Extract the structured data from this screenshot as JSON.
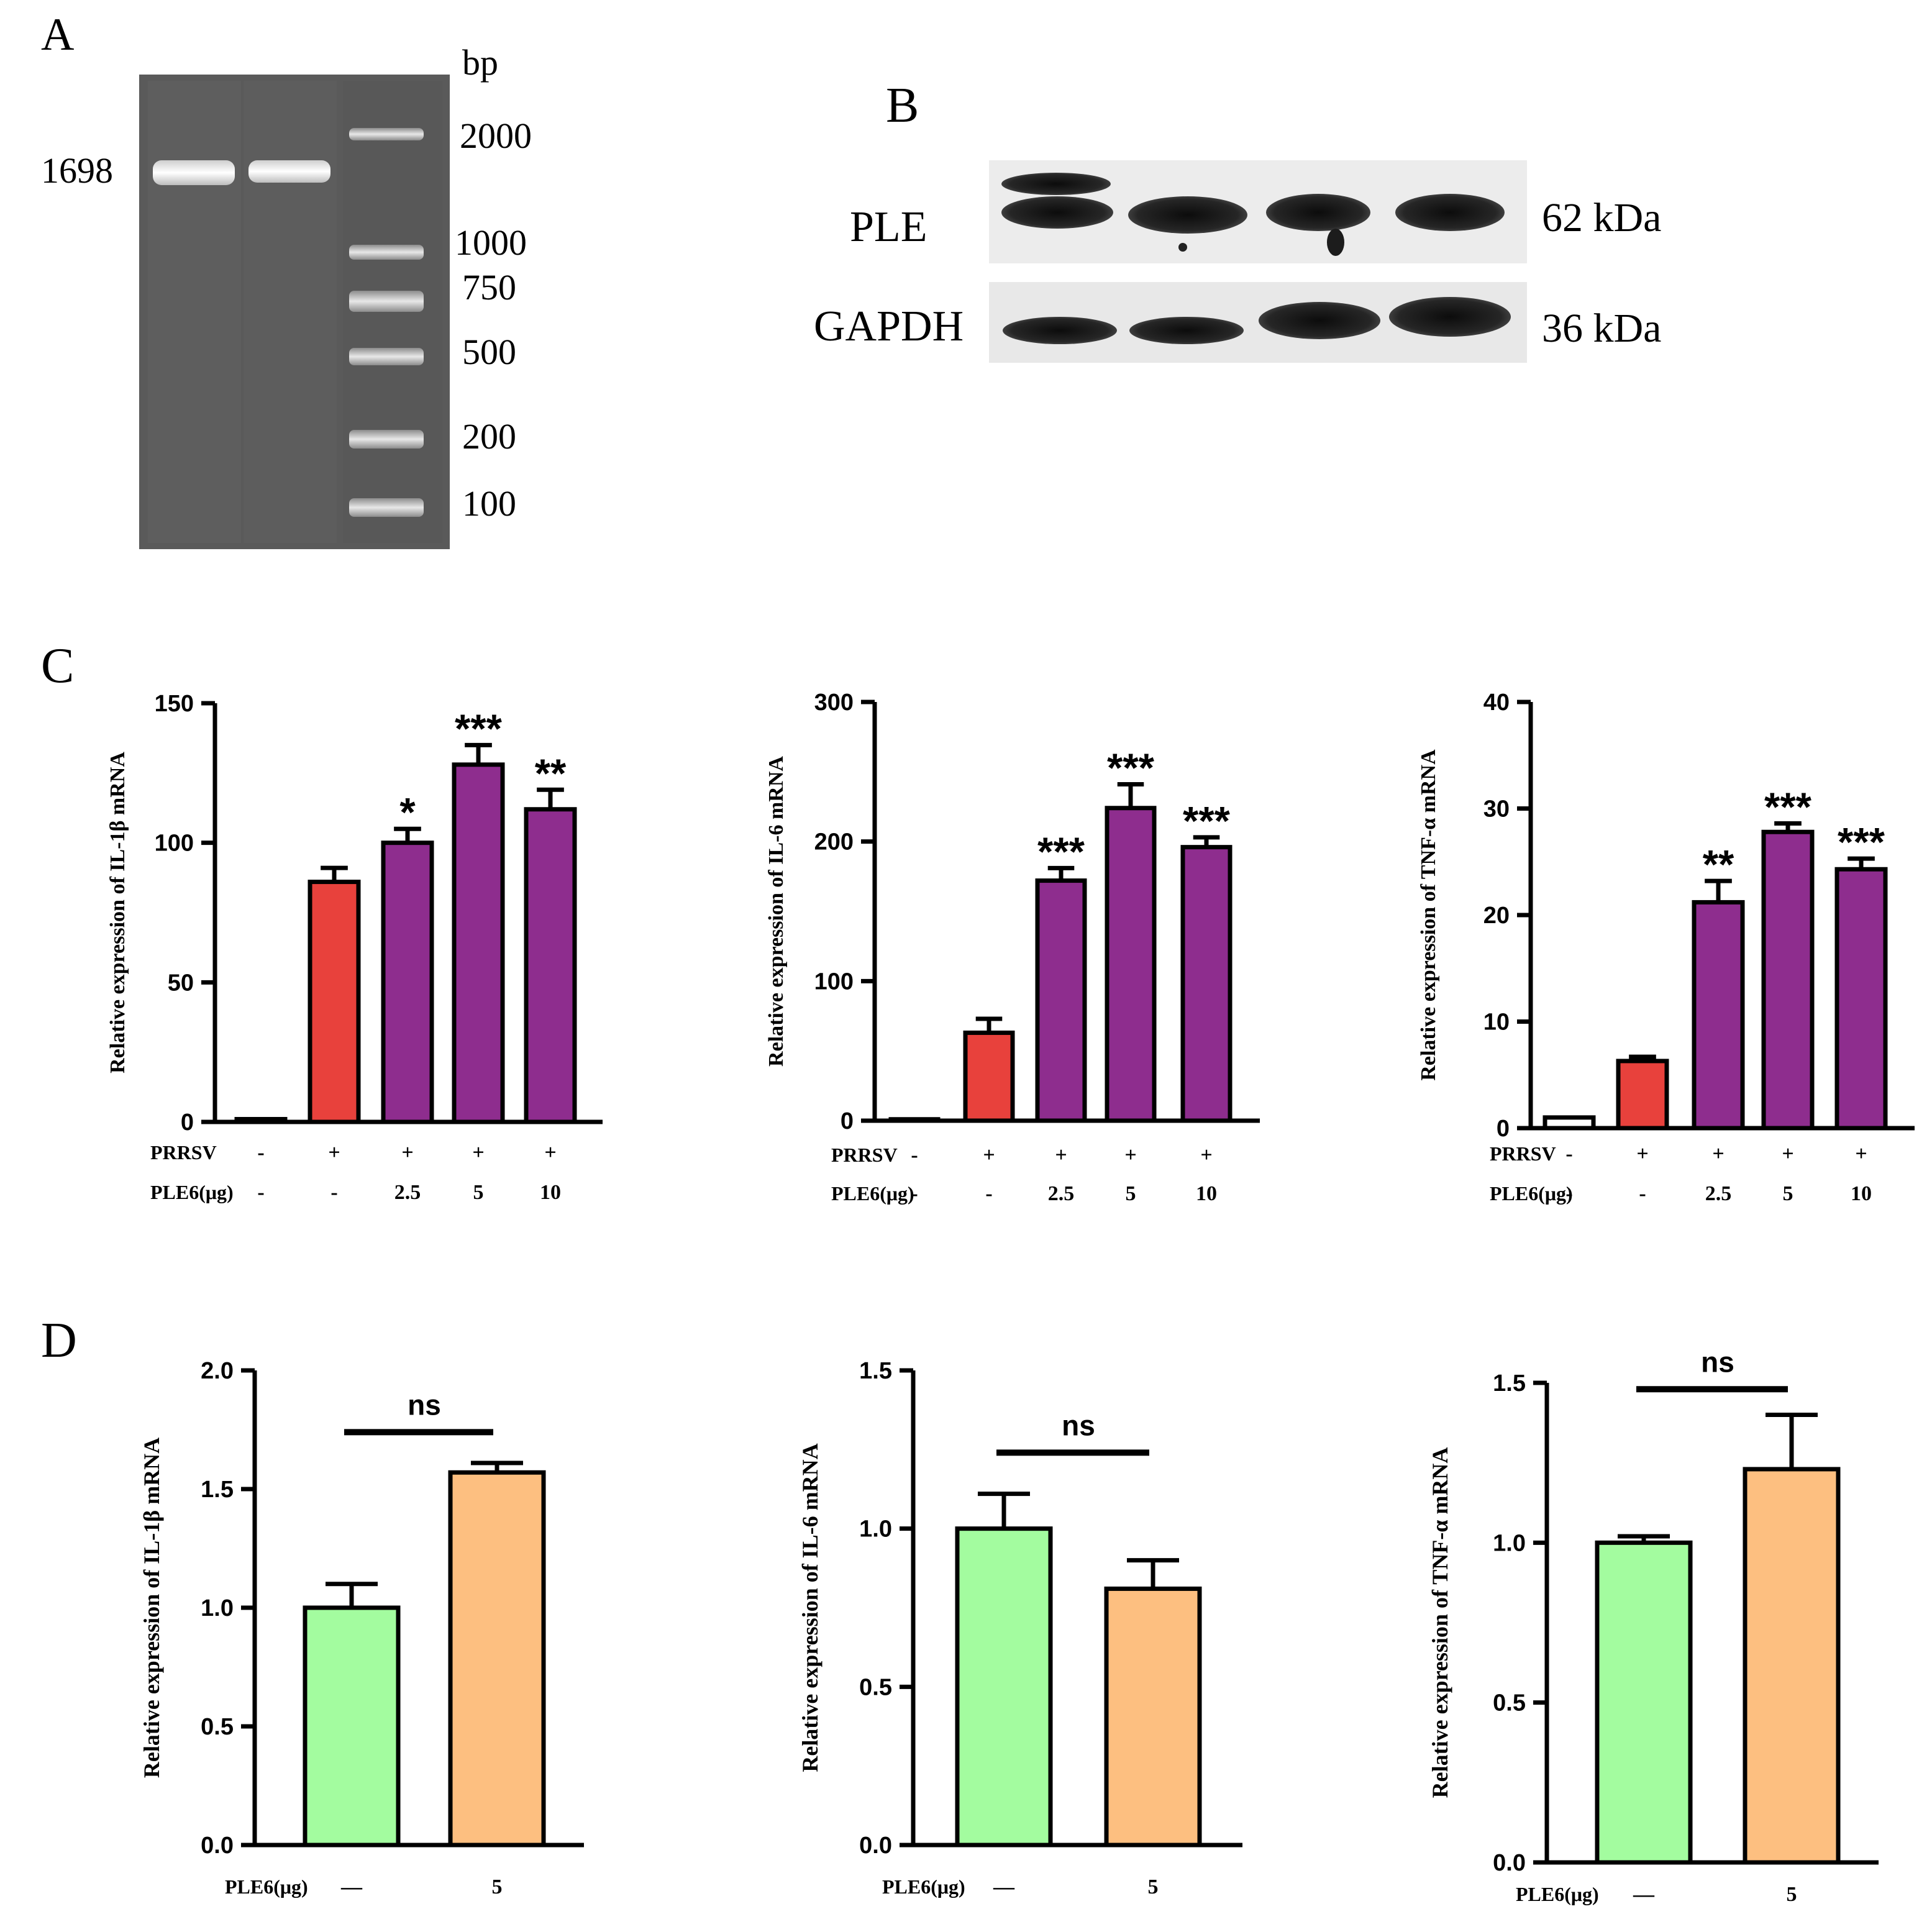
{
  "panels": {
    "A": {
      "letter": "A",
      "unit_label": "bp",
      "band_label": "1698",
      "ladder": [
        "2000",
        "1000",
        "750",
        "500",
        "200",
        "100"
      ]
    },
    "B": {
      "letter": "B",
      "rows": [
        {
          "protein": "PLE",
          "mw": "62 kDa"
        },
        {
          "protein": "GAPDH",
          "mw": "36 kDa"
        }
      ]
    },
    "C": {
      "letter": "C"
    },
    "D": {
      "letter": "D"
    }
  },
  "colors": {
    "control": "#ffffff",
    "prrsv": "#e8413c",
    "ple6": "#8e2d8e",
    "d_control": "#a3fc9f",
    "d_ple6": "#fdbf80"
  },
  "chart_data": [
    {
      "panel": "C",
      "type": "bar",
      "ylabel": "Relative expression of IL-1β mRNA",
      "ylim": [
        0,
        150
      ],
      "yticks": [
        "0",
        "50",
        "100",
        "150"
      ],
      "values": [
        1,
        86,
        100,
        128,
        112
      ],
      "errors": [
        0,
        5,
        5,
        7,
        7
      ],
      "significance": [
        "",
        "",
        "*",
        "***",
        "**"
      ],
      "bar_colors": [
        "control",
        "prrsv",
        "ple6",
        "ple6",
        "ple6"
      ],
      "row_labels": [
        "PRRSV",
        "PLE6(μg)"
      ],
      "rows": [
        [
          "-",
          "+",
          "+",
          "+",
          "+"
        ],
        [
          "-",
          "-",
          "2.5",
          "5",
          "10"
        ]
      ]
    },
    {
      "panel": "C",
      "type": "bar",
      "ylabel": "Relative expression of IL-6 mRNA",
      "ylim": [
        0,
        300
      ],
      "yticks": [
        "0",
        "100",
        "200",
        "300"
      ],
      "values": [
        1,
        63,
        172,
        224,
        196
      ],
      "errors": [
        0,
        10,
        9,
        17,
        7
      ],
      "significance": [
        "",
        "",
        "***",
        "***",
        "***"
      ],
      "bar_colors": [
        "control",
        "prrsv",
        "ple6",
        "ple6",
        "ple6"
      ],
      "row_labels": [
        "PRRSV",
        "PLE6(μg)"
      ],
      "rows": [
        [
          "-",
          "+",
          "+",
          "+",
          "+"
        ],
        [
          "-",
          "-",
          "2.5",
          "5",
          "10"
        ]
      ]
    },
    {
      "panel": "C",
      "type": "bar",
      "ylabel": "Relative expression of TNF-α mRNA",
      "ylim": [
        0,
        40
      ],
      "yticks": [
        "0",
        "10",
        "20",
        "30",
        "40"
      ],
      "values": [
        1,
        6.3,
        21.2,
        27.8,
        24.3
      ],
      "errors": [
        0,
        0.4,
        2.0,
        0.8,
        1.0
      ],
      "significance": [
        "",
        "",
        "**",
        "***",
        "***"
      ],
      "bar_colors": [
        "control",
        "prrsv",
        "ple6",
        "ple6",
        "ple6"
      ],
      "row_labels": [
        "PRRSV",
        "PLE6(μg)"
      ],
      "rows": [
        [
          "-",
          "+",
          "+",
          "+",
          "+"
        ],
        [
          "-",
          "-",
          "2.5",
          "5",
          "10"
        ]
      ]
    },
    {
      "panel": "D",
      "type": "bar",
      "ylabel": "Relative expression of IL-1β mRNA",
      "ylim": [
        0,
        2.0
      ],
      "yticks": [
        "0.0",
        "0.5",
        "1.0",
        "1.5",
        "2.0"
      ],
      "values": [
        1.0,
        1.57
      ],
      "errors": [
        0.1,
        0.04
      ],
      "bar_colors": [
        "d_control",
        "d_ple6"
      ],
      "comparison": {
        "label": "ns",
        "level": 1.74
      },
      "row_labels": [
        "PLE6(μg)"
      ],
      "rows": [
        [
          "—",
          "5"
        ]
      ]
    },
    {
      "panel": "D",
      "type": "bar",
      "ylabel": "Relative expression of IL-6 mRNA",
      "ylim": [
        0,
        1.5
      ],
      "yticks": [
        "0.0",
        "0.5",
        "1.0",
        "1.5"
      ],
      "values": [
        1.0,
        0.81
      ],
      "errors": [
        0.11,
        0.09
      ],
      "bar_colors": [
        "d_control",
        "d_ple6"
      ],
      "comparison": {
        "label": "ns",
        "level": 1.24
      },
      "row_labels": [
        "PLE6(μg)"
      ],
      "rows": [
        [
          "—",
          "5"
        ]
      ]
    },
    {
      "panel": "D",
      "type": "bar",
      "ylabel": "Relative expression of TNF-α mRNA",
      "ylim": [
        0,
        1.5
      ],
      "yticks": [
        "0.0",
        "0.5",
        "1.0",
        "1.5"
      ],
      "values": [
        1.0,
        1.23
      ],
      "errors": [
        0.02,
        0.17
      ],
      "bar_colors": [
        "d_control",
        "d_ple6"
      ],
      "comparison": {
        "label": "ns",
        "level": 1.48
      },
      "row_labels": [
        "PLE6(μg)"
      ],
      "rows": [
        [
          "—",
          "5"
        ]
      ]
    }
  ]
}
